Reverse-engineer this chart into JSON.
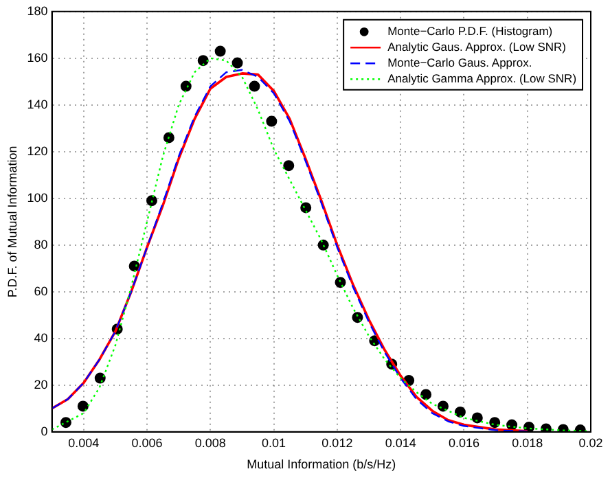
{
  "chart_data": {
    "type": "line",
    "xlabel": "Mutual Information (b/s/Hz)",
    "ylabel": "P.D.F. of Mutual Information",
    "xlim": [
      0.003,
      0.02
    ],
    "ylim": [
      0,
      180
    ],
    "xticks": [
      0.004,
      0.006,
      0.008,
      0.01,
      0.012,
      0.014,
      0.016,
      0.018,
      0.02
    ],
    "yticks": [
      0,
      20,
      40,
      60,
      80,
      100,
      120,
      140,
      160,
      180
    ],
    "grid": true,
    "legend": "top right",
    "series": [
      {
        "name": "Monte−Carlo P.D.F. (Histogram)",
        "type": "scatter",
        "marker": "circle",
        "color": "#000000",
        "x": [
          0.00344,
          0.00398,
          0.00452,
          0.00506,
          0.0056,
          0.00615,
          0.00669,
          0.00723,
          0.00777,
          0.00831,
          0.00885,
          0.00939,
          0.00993,
          0.01047,
          0.01101,
          0.01156,
          0.0121,
          0.01264,
          0.01318,
          0.01372,
          0.01426,
          0.0148,
          0.01534,
          0.01588,
          0.01642,
          0.01697,
          0.01751,
          0.01805,
          0.01859,
          0.01913,
          0.01967
        ],
        "values": [
          4,
          11,
          23,
          44,
          71,
          99,
          126,
          148,
          159,
          163,
          158,
          148,
          133,
          114,
          96,
          80,
          64,
          49,
          39,
          29,
          22,
          16,
          11,
          8.5,
          6,
          4,
          3,
          2,
          1.3,
          1,
          0.8
        ]
      },
      {
        "name": "Analytic Gaus. Approx. (Low SNR)",
        "marker": "none",
        "line_style": "solid",
        "color": "#ff0000",
        "x": [
          0.003,
          0.0035,
          0.004,
          0.0045,
          0.005,
          0.0055,
          0.006,
          0.0065,
          0.007,
          0.0075,
          0.008,
          0.0085,
          0.009,
          0.0095,
          0.01,
          0.0105,
          0.011,
          0.0115,
          0.012,
          0.0125,
          0.013,
          0.0135,
          0.014,
          0.0145,
          0.015,
          0.0155,
          0.016,
          0.017,
          0.018
        ],
        "values": [
          10,
          14,
          21,
          31,
          43,
          60,
          79,
          97,
          117,
          134,
          147,
          152,
          153.5,
          153,
          146,
          134,
          117,
          99,
          80,
          63,
          48,
          35,
          24,
          15,
          9,
          5,
          3,
          1,
          0.3
        ]
      },
      {
        "name": "Monte−Carlo Gaus. Approx.",
        "marker": "none",
        "line_style": "dashed",
        "color": "#0000ff",
        "x": [
          0.003,
          0.0035,
          0.004,
          0.0045,
          0.005,
          0.0055,
          0.006,
          0.0065,
          0.007,
          0.0075,
          0.008,
          0.0085,
          0.009,
          0.0095,
          0.01,
          0.0105,
          0.011,
          0.0115,
          0.012,
          0.0125,
          0.013,
          0.0135,
          0.014,
          0.0145,
          0.015,
          0.0155,
          0.016,
          0.017,
          0.018
        ],
        "values": [
          10,
          14,
          21,
          31,
          43,
          60,
          79,
          98,
          118,
          135,
          148,
          154,
          155,
          152,
          145,
          133,
          116,
          98,
          79,
          62,
          47,
          34,
          23,
          14,
          8,
          4.5,
          2.5,
          0.7,
          0.2
        ]
      },
      {
        "name": "Analytic Gamma Approx. (Low SNR)",
        "marker": "none",
        "line_style": "dotted",
        "color": "#00ff00",
        "x": [
          0.003,
          0.004,
          0.0045,
          0.005,
          0.0055,
          0.006,
          0.0065,
          0.007,
          0.0075,
          0.008,
          0.0085,
          0.009,
          0.0095,
          0.01,
          0.0105,
          0.011,
          0.0115,
          0.012,
          0.0125,
          0.013,
          0.0135,
          0.014,
          0.0145,
          0.015,
          0.0155,
          0.016,
          0.017,
          0.018,
          0.019,
          0.02
        ],
        "values": [
          1,
          8,
          19,
          37,
          62,
          90,
          118,
          140,
          154,
          160,
          159,
          152,
          138,
          121,
          108,
          95,
          82,
          67,
          53,
          41,
          31,
          23,
          17,
          12,
          9,
          6,
          3,
          1.5,
          0.7,
          0.3
        ]
      }
    ]
  }
}
